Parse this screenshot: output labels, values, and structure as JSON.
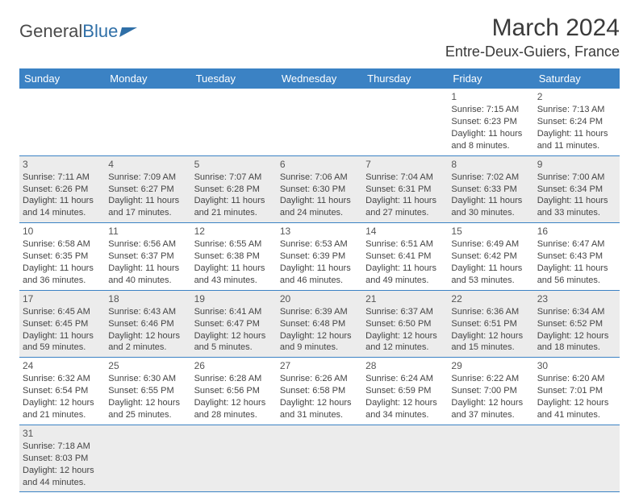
{
  "logo": {
    "text_general": "General",
    "text_blue": "Blue"
  },
  "title": "March 2024",
  "location": "Entre-Deux-Guiers, France",
  "colors": {
    "header_bg": "#3b82c4",
    "header_text": "#ffffff",
    "row_odd_bg": "#ececec",
    "row_even_bg": "#ffffff",
    "text": "#444444",
    "logo_blue": "#2f6fa7"
  },
  "day_headers": [
    "Sunday",
    "Monday",
    "Tuesday",
    "Wednesday",
    "Thursday",
    "Friday",
    "Saturday"
  ],
  "weeks": [
    [
      null,
      null,
      null,
      null,
      null,
      {
        "n": "1",
        "sr": "Sunrise: 7:15 AM",
        "ss": "Sunset: 6:23 PM",
        "dl": "Daylight: 11 hours and 8 minutes."
      },
      {
        "n": "2",
        "sr": "Sunrise: 7:13 AM",
        "ss": "Sunset: 6:24 PM",
        "dl": "Daylight: 11 hours and 11 minutes."
      }
    ],
    [
      {
        "n": "3",
        "sr": "Sunrise: 7:11 AM",
        "ss": "Sunset: 6:26 PM",
        "dl": "Daylight: 11 hours and 14 minutes."
      },
      {
        "n": "4",
        "sr": "Sunrise: 7:09 AM",
        "ss": "Sunset: 6:27 PM",
        "dl": "Daylight: 11 hours and 17 minutes."
      },
      {
        "n": "5",
        "sr": "Sunrise: 7:07 AM",
        "ss": "Sunset: 6:28 PM",
        "dl": "Daylight: 11 hours and 21 minutes."
      },
      {
        "n": "6",
        "sr": "Sunrise: 7:06 AM",
        "ss": "Sunset: 6:30 PM",
        "dl": "Daylight: 11 hours and 24 minutes."
      },
      {
        "n": "7",
        "sr": "Sunrise: 7:04 AM",
        "ss": "Sunset: 6:31 PM",
        "dl": "Daylight: 11 hours and 27 minutes."
      },
      {
        "n": "8",
        "sr": "Sunrise: 7:02 AM",
        "ss": "Sunset: 6:33 PM",
        "dl": "Daylight: 11 hours and 30 minutes."
      },
      {
        "n": "9",
        "sr": "Sunrise: 7:00 AM",
        "ss": "Sunset: 6:34 PM",
        "dl": "Daylight: 11 hours and 33 minutes."
      }
    ],
    [
      {
        "n": "10",
        "sr": "Sunrise: 6:58 AM",
        "ss": "Sunset: 6:35 PM",
        "dl": "Daylight: 11 hours and 36 minutes."
      },
      {
        "n": "11",
        "sr": "Sunrise: 6:56 AM",
        "ss": "Sunset: 6:37 PM",
        "dl": "Daylight: 11 hours and 40 minutes."
      },
      {
        "n": "12",
        "sr": "Sunrise: 6:55 AM",
        "ss": "Sunset: 6:38 PM",
        "dl": "Daylight: 11 hours and 43 minutes."
      },
      {
        "n": "13",
        "sr": "Sunrise: 6:53 AM",
        "ss": "Sunset: 6:39 PM",
        "dl": "Daylight: 11 hours and 46 minutes."
      },
      {
        "n": "14",
        "sr": "Sunrise: 6:51 AM",
        "ss": "Sunset: 6:41 PM",
        "dl": "Daylight: 11 hours and 49 minutes."
      },
      {
        "n": "15",
        "sr": "Sunrise: 6:49 AM",
        "ss": "Sunset: 6:42 PM",
        "dl": "Daylight: 11 hours and 53 minutes."
      },
      {
        "n": "16",
        "sr": "Sunrise: 6:47 AM",
        "ss": "Sunset: 6:43 PM",
        "dl": "Daylight: 11 hours and 56 minutes."
      }
    ],
    [
      {
        "n": "17",
        "sr": "Sunrise: 6:45 AM",
        "ss": "Sunset: 6:45 PM",
        "dl": "Daylight: 11 hours and 59 minutes."
      },
      {
        "n": "18",
        "sr": "Sunrise: 6:43 AM",
        "ss": "Sunset: 6:46 PM",
        "dl": "Daylight: 12 hours and 2 minutes."
      },
      {
        "n": "19",
        "sr": "Sunrise: 6:41 AM",
        "ss": "Sunset: 6:47 PM",
        "dl": "Daylight: 12 hours and 5 minutes."
      },
      {
        "n": "20",
        "sr": "Sunrise: 6:39 AM",
        "ss": "Sunset: 6:48 PM",
        "dl": "Daylight: 12 hours and 9 minutes."
      },
      {
        "n": "21",
        "sr": "Sunrise: 6:37 AM",
        "ss": "Sunset: 6:50 PM",
        "dl": "Daylight: 12 hours and 12 minutes."
      },
      {
        "n": "22",
        "sr": "Sunrise: 6:36 AM",
        "ss": "Sunset: 6:51 PM",
        "dl": "Daylight: 12 hours and 15 minutes."
      },
      {
        "n": "23",
        "sr": "Sunrise: 6:34 AM",
        "ss": "Sunset: 6:52 PM",
        "dl": "Daylight: 12 hours and 18 minutes."
      }
    ],
    [
      {
        "n": "24",
        "sr": "Sunrise: 6:32 AM",
        "ss": "Sunset: 6:54 PM",
        "dl": "Daylight: 12 hours and 21 minutes."
      },
      {
        "n": "25",
        "sr": "Sunrise: 6:30 AM",
        "ss": "Sunset: 6:55 PM",
        "dl": "Daylight: 12 hours and 25 minutes."
      },
      {
        "n": "26",
        "sr": "Sunrise: 6:28 AM",
        "ss": "Sunset: 6:56 PM",
        "dl": "Daylight: 12 hours and 28 minutes."
      },
      {
        "n": "27",
        "sr": "Sunrise: 6:26 AM",
        "ss": "Sunset: 6:58 PM",
        "dl": "Daylight: 12 hours and 31 minutes."
      },
      {
        "n": "28",
        "sr": "Sunrise: 6:24 AM",
        "ss": "Sunset: 6:59 PM",
        "dl": "Daylight: 12 hours and 34 minutes."
      },
      {
        "n": "29",
        "sr": "Sunrise: 6:22 AM",
        "ss": "Sunset: 7:00 PM",
        "dl": "Daylight: 12 hours and 37 minutes."
      },
      {
        "n": "30",
        "sr": "Sunrise: 6:20 AM",
        "ss": "Sunset: 7:01 PM",
        "dl": "Daylight: 12 hours and 41 minutes."
      }
    ],
    [
      {
        "n": "31",
        "sr": "Sunrise: 7:18 AM",
        "ss": "Sunset: 8:03 PM",
        "dl": "Daylight: 12 hours and 44 minutes."
      },
      null,
      null,
      null,
      null,
      null,
      null
    ]
  ]
}
